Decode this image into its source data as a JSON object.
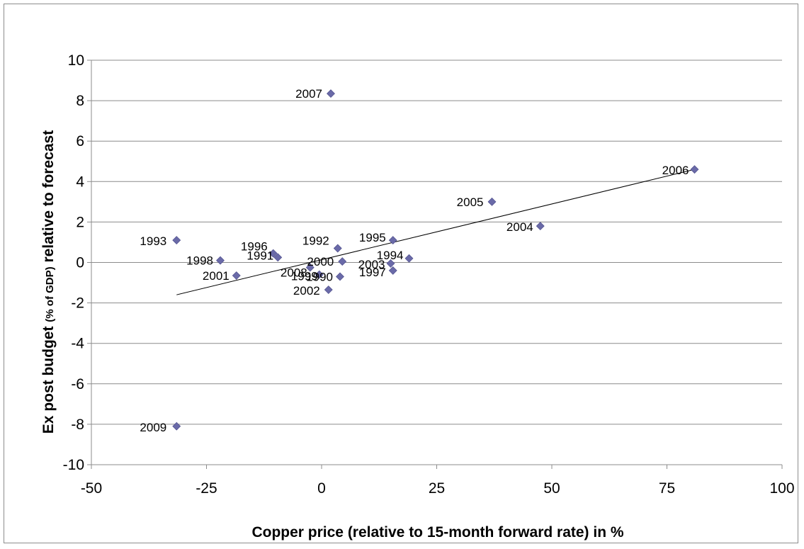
{
  "chart_data": {
    "type": "scatter",
    "title": "",
    "xlabel": "Copper price (relative to 15-month forward rate) in %",
    "ylabel_main": "Ex post budget ",
    "ylabel_small": "(% of GDP)",
    "ylabel_end": " relative to forecast",
    "xlim": [
      -50,
      100
    ],
    "ylim": [
      -10,
      10
    ],
    "x_ticks": [
      -50,
      -25,
      0,
      25,
      50,
      75,
      100
    ],
    "y_ticks": [
      -10,
      -8,
      -6,
      -4,
      -2,
      0,
      2,
      4,
      6,
      8,
      10
    ],
    "grid": "horizontal",
    "legend": "none",
    "marker_color": "#6a6aa8",
    "trendline": {
      "x": [
        -31.5,
        81
      ],
      "y": [
        -1.6,
        4.6
      ],
      "color": "#000000"
    },
    "points": [
      {
        "label": "1990",
        "x": 4,
        "y": -0.7
      },
      {
        "label": "1991",
        "x": -9.5,
        "y": 0.25
      },
      {
        "label": "1992",
        "x": 3.5,
        "y": 0.7
      },
      {
        "label": "1993",
        "x": -31.5,
        "y": 1.1
      },
      {
        "label": "1994",
        "x": 19,
        "y": 0.2
      },
      {
        "label": "1995",
        "x": 15.5,
        "y": 1.1
      },
      {
        "label": "1996",
        "x": -10.5,
        "y": 0.45
      },
      {
        "label": "1997",
        "x": 15.5,
        "y": -0.4
      },
      {
        "label": "1998",
        "x": -22,
        "y": 0.1
      },
      {
        "label": "1999",
        "x": -0.5,
        "y": -0.6
      },
      {
        "label": "2000",
        "x": 4.5,
        "y": 0.05
      },
      {
        "label": "2001",
        "x": -18.5,
        "y": -0.65
      },
      {
        "label": "2002",
        "x": 1.5,
        "y": -1.35
      },
      {
        "label": "2003",
        "x": 15,
        "y": -0.05
      },
      {
        "label": "2004",
        "x": 47.5,
        "y": 1.8
      },
      {
        "label": "2005",
        "x": 37,
        "y": 3.0
      },
      {
        "label": "2006",
        "x": 81,
        "y": 4.6
      },
      {
        "label": "2007",
        "x": 2,
        "y": 8.35
      },
      {
        "label": "2008",
        "x": -2.5,
        "y": -0.25
      },
      {
        "label": "2009",
        "x": -31.5,
        "y": -8.1
      }
    ]
  }
}
